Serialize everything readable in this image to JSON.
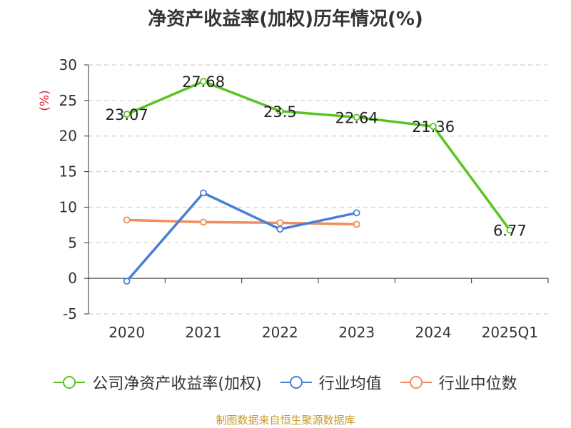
{
  "chart_data": {
    "type": "line",
    "title": "净资产收益率(加权)历年情况(%)",
    "ylabel": "(%)",
    "xlabel": "",
    "categories": [
      "2020",
      "2021",
      "2022",
      "2023",
      "2024",
      "2025Q1"
    ],
    "ylim": [
      -5,
      30
    ],
    "yticks": [
      -5,
      0,
      5,
      10,
      15,
      20,
      25,
      30
    ],
    "grid": true,
    "legend_position": "bottom",
    "series": [
      {
        "name": "公司净资产收益率(加权)",
        "color": "#5ac423",
        "values": [
          23.07,
          27.68,
          23.5,
          22.64,
          21.36,
          6.77
        ],
        "labels": true
      },
      {
        "name": "行业均值",
        "color": "#4a7fd6",
        "values": [
          -0.4,
          12.0,
          6.9,
          9.2,
          null,
          null
        ],
        "labels": false
      },
      {
        "name": "行业中位数",
        "color": "#f28c5d",
        "values": [
          8.2,
          7.9,
          7.8,
          7.6,
          null,
          null
        ],
        "labels": false
      }
    ]
  },
  "source": "制图数据来自恒生聚源数据库"
}
